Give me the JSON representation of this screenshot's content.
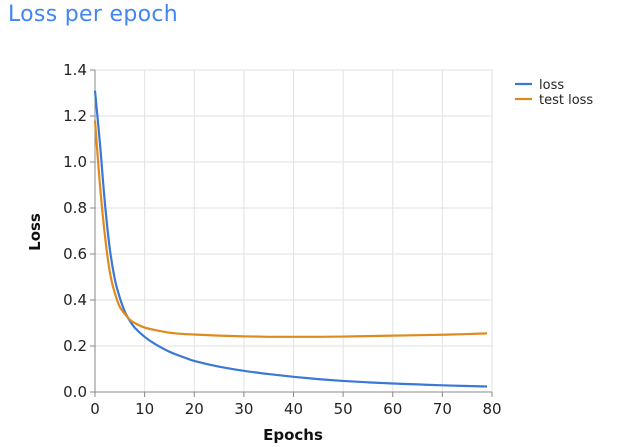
{
  "title": "Loss per epoch",
  "chart_data": {
    "type": "line",
    "xlabel": "Epochs",
    "ylabel": "Loss",
    "xlim": [
      0,
      80
    ],
    "ylim": [
      0,
      1.4
    ],
    "x_ticks": [
      "0",
      "10",
      "20",
      "30",
      "40",
      "50",
      "60",
      "70",
      "80"
    ],
    "y_ticks": [
      "0.0",
      "0.2",
      "0.4",
      "0.6",
      "0.8",
      "1.0",
      "1.2",
      "1.4"
    ],
    "grid": true,
    "legend_position": "top-right",
    "x": [
      0,
      1,
      2,
      3,
      4,
      5,
      6,
      7,
      8,
      10,
      12,
      15,
      18,
      20,
      25,
      30,
      35,
      40,
      45,
      50,
      55,
      60,
      65,
      70,
      75,
      79
    ],
    "series": [
      {
        "name": "loss",
        "color": "#3a78d8",
        "values": [
          1.31,
          1.08,
          0.82,
          0.62,
          0.49,
          0.41,
          0.35,
          0.31,
          0.28,
          0.24,
          0.21,
          0.175,
          0.15,
          0.135,
          0.11,
          0.092,
          0.078,
          0.066,
          0.056,
          0.048,
          0.042,
          0.037,
          0.033,
          0.029,
          0.026,
          0.024
        ]
      },
      {
        "name": "test loss",
        "color": "#e08a1e",
        "values": [
          1.18,
          0.9,
          0.68,
          0.52,
          0.43,
          0.37,
          0.34,
          0.315,
          0.3,
          0.28,
          0.27,
          0.258,
          0.252,
          0.25,
          0.245,
          0.242,
          0.24,
          0.24,
          0.24,
          0.241,
          0.243,
          0.245,
          0.247,
          0.249,
          0.252,
          0.255
        ]
      }
    ]
  }
}
